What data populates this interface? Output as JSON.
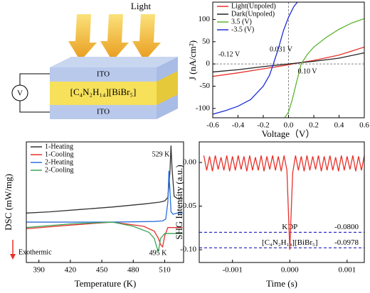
{
  "diagram": {
    "light": "Light",
    "layers": [
      "ITO",
      "[C₄N₂H₁₄][BiBr₅]",
      "ITO"
    ],
    "meter": "V"
  },
  "chart_data": [
    {
      "type": "line",
      "xlabel": "Voltage（V）",
      "ylabel": "J (nA/cm²)",
      "xlim": [
        -0.6,
        0.6
      ],
      "ylim": [
        -121,
        139
      ],
      "xticks": [
        -0.6,
        -0.4,
        -0.2,
        {
          "value": 0,
          "label": "0.0"
        },
        0.2,
        0.4,
        0.6
      ],
      "yticks": [
        -100,
        -50,
        0,
        50,
        100
      ],
      "zero_lines": true,
      "legend": "upper left",
      "annotations": [
        "-0.12 V",
        "0.031 V",
        "0.10 V"
      ],
      "series": [
        {
          "name": "Light(Unpoled)",
          "color": "#e8312a",
          "x": [
            -0.6,
            -0.4,
            -0.2,
            0,
            0.031,
            0.2,
            0.4,
            0.6
          ],
          "values": [
            -28,
            -20,
            -11,
            -2,
            0,
            8,
            20,
            38
          ]
        },
        {
          "name": "Dark(Unpoled)",
          "color": "#222222",
          "x": [
            -0.6,
            -0.4,
            -0.2,
            0,
            0.2,
            0.4,
            0.6
          ],
          "values": [
            -18,
            -13,
            -6,
            0,
            6,
            13,
            25
          ]
        },
        {
          "name": "3.5 (V)",
          "color": "#5fb333",
          "x": [
            -0.03,
            0,
            0.03,
            0.06,
            0.1,
            0.15,
            0.2,
            0.3,
            0.4,
            0.5,
            0.6
          ],
          "values": [
            -121,
            -108,
            -80,
            -45,
            0,
            22,
            38,
            60,
            78,
            92,
            102
          ]
        },
        {
          "name": "-3.5 (V)",
          "color": "#1f2fd6",
          "x": [
            -0.6,
            -0.5,
            -0.4,
            -0.3,
            -0.2,
            -0.15,
            -0.12,
            -0.08,
            -0.04,
            0,
            0.04,
            0.07
          ],
          "values": [
            -113,
            -105,
            -95,
            -80,
            -50,
            -25,
            0,
            35,
            75,
            105,
            128,
            139
          ]
        }
      ]
    },
    {
      "type": "line",
      "xlabel": "Temperature (K)",
      "ylabel": "DSC (mW/mg)",
      "xlim": [
        378,
        528
      ],
      "ylim": [
        0,
        10
      ],
      "xticks": [
        390,
        420,
        450,
        480,
        510
      ],
      "legend": "upper left",
      "annotations": [
        "529 K",
        "495 K"
      ],
      "note": "Exothermic",
      "series": [
        {
          "name": "1-Heating",
          "color": "#333333",
          "x": [
            378,
            400,
            430,
            460,
            490,
            505,
            510,
            513,
            515,
            516,
            517,
            519,
            522,
            527
          ],
          "values": [
            4.1,
            4.2,
            4.4,
            4.6,
            4.85,
            5.0,
            5.1,
            5.4,
            7.5,
            9.7,
            7.8,
            5.5,
            5.3,
            5.3
          ]
        },
        {
          "name": "1-Cooling",
          "color": "#e8312a",
          "x": [
            378,
            420,
            460,
            490,
            500,
            504,
            506,
            508,
            510,
            513,
            518,
            527
          ],
          "values": [
            2.8,
            3.1,
            3.35,
            3.0,
            2.6,
            2.0,
            1.5,
            1.3,
            2.2,
            2.9,
            2.9,
            2.9
          ]
        },
        {
          "name": "2-Heating",
          "color": "#2a6fdb",
          "x": [
            378,
            420,
            460,
            500,
            508,
            511,
            513,
            514,
            515,
            516,
            518,
            522,
            527
          ],
          "values": [
            3.35,
            3.35,
            3.35,
            3.4,
            3.45,
            3.6,
            5.0,
            7.6,
            6.0,
            4.2,
            4.0,
            4.1,
            4.1
          ]
        },
        {
          "name": "2-Cooling",
          "color": "#3aa655",
          "x": [
            378,
            420,
            460,
            480,
            495,
            500,
            502,
            504,
            506,
            510,
            518,
            527
          ],
          "values": [
            2.9,
            3.2,
            3.35,
            3.0,
            2.5,
            2.0,
            1.4,
            0.9,
            2.0,
            2.4,
            2.4,
            2.4
          ]
        }
      ]
    },
    {
      "type": "line",
      "xlabel": "Time (s)",
      "ylabel": "SHG Intensity (a.u.)",
      "xlim": [
        -0.00158,
        0.0013
      ],
      "ylim": [
        -0.1146,
        0.0236
      ],
      "xticks": [
        -0.001,
        {
          "value": 0,
          "label": "0.000"
        },
        0.001
      ],
      "yticks": [
        {
          "value": 0,
          "label": "0.00"
        },
        {
          "value": -0.05,
          "label": "-0.05"
        },
        {
          "value": -0.1,
          "label": "-0.10"
        }
      ],
      "reference_lines": [
        {
          "name": "KDP",
          "value": -0.08,
          "value_label": "-0.0800",
          "color": "#1c1cbf",
          "text_color": "#000000"
        },
        {
          "name": "[C₄N₂H₁₄][BiBr₅]",
          "value": -0.0978,
          "value_label": "-0.0978",
          "color": "#1c1cbf",
          "text_color": "#e8312a"
        }
      ],
      "series": [
        {
          "color": "#e8312a",
          "x": [
            -0.0015,
            -0.00145,
            -0.0014,
            -0.00135,
            -0.0013,
            -0.00125,
            -0.0012,
            -0.00115,
            -0.0011,
            -0.00105,
            -0.001,
            -0.00095,
            -0.0009,
            -0.00085,
            -0.0008,
            -0.00075,
            -0.0007,
            -0.00065,
            -0.0006,
            -0.00055,
            -0.0005,
            -0.00045,
            -0.0004,
            -0.00035,
            -0.0003,
            -0.00025,
            -0.0002,
            -0.00015,
            -0.0001,
            -5e-05,
            0,
            5e-05,
            0.0001,
            0.00015,
            0.0002,
            0.00025,
            0.0003,
            0.00035,
            0.0004,
            0.00045,
            0.0005,
            0.00055,
            0.0006,
            0.00065,
            0.0007,
            0.00075,
            0.0008,
            0.00085,
            0.0009,
            0.00095,
            0.001,
            0.00105,
            0.0011,
            0.00115,
            0.0012,
            0.00125,
            0.0013
          ],
          "values": [
            0.008,
            -0.009,
            0.007,
            -0.01,
            0.008,
            -0.008,
            0.006,
            -0.009,
            0.008,
            -0.01,
            0.007,
            -0.009,
            0.008,
            -0.008,
            0.007,
            -0.01,
            0.008,
            -0.009,
            0.006,
            -0.009,
            0.008,
            -0.01,
            0.007,
            -0.008,
            0.008,
            -0.009,
            0.007,
            -0.01,
            0.008,
            -0.009,
            -0.1,
            -0.012,
            0.008,
            -0.009,
            0.007,
            -0.01,
            0.008,
            -0.009,
            0.007,
            -0.008,
            0.008,
            -0.01,
            0.007,
            -0.009,
            0.008,
            -0.009,
            0.006,
            -0.01,
            0.008,
            -0.009,
            0.007,
            -0.008,
            0.008,
            -0.01,
            0.007,
            -0.009,
            0.008
          ]
        }
      ]
    }
  ]
}
